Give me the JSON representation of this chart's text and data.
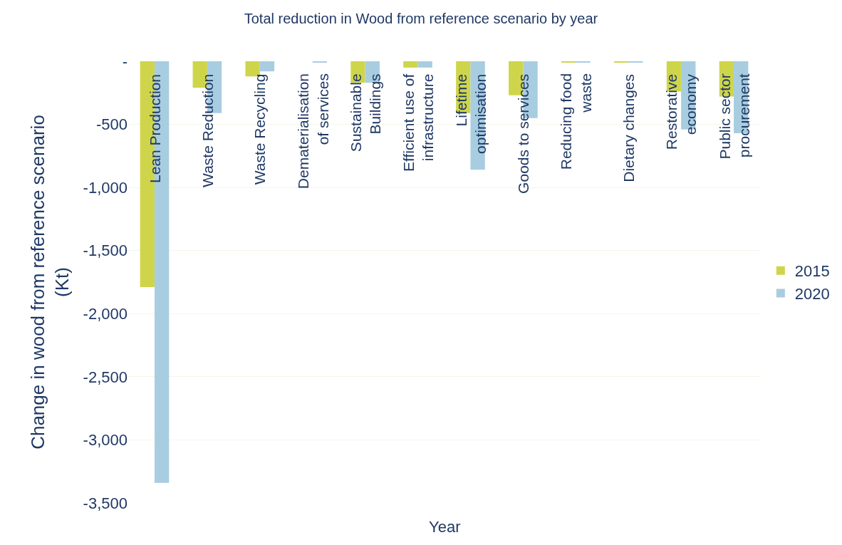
{
  "chart_data": {
    "type": "bar",
    "title": "Total reduction in Wood from reference scenario by year",
    "xlabel": "Year",
    "ylabel": "Change in wood from reference scenario\n(Kt)",
    "categories": [
      "Lean Production",
      "Waste Reduction",
      "Waste Recycling",
      "Dematerialisation\nof services",
      "Sustainable\nBuildings",
      "Efficient use of\ninfrastructure",
      "Lifetime\noptimisation",
      "Goods to services",
      "Reducing food\nwaste",
      "Dietary changes",
      "Restorative\neconomy",
      "Public sector\nprocurement"
    ],
    "series": [
      {
        "name": "2015",
        "color": "#cfd54a",
        "values": [
          -1790,
          -210,
          -120,
          0,
          -170,
          -50,
          -410,
          -270,
          -10,
          -10,
          -240,
          -280
        ]
      },
      {
        "name": "2020",
        "color": "#a8cde0",
        "values": [
          -3340,
          -410,
          -80,
          -10,
          -170,
          -50,
          -860,
          -450,
          -10,
          -10,
          -540,
          -570
        ]
      }
    ],
    "ylim": [
      -3500,
      0
    ],
    "yticks": [
      {
        "value": 0,
        "label": "-"
      },
      {
        "value": -500,
        "label": "-500"
      },
      {
        "value": -1000,
        "label": "-1,000"
      },
      {
        "value": -1500,
        "label": "-1,500"
      },
      {
        "value": -2000,
        "label": "-2,000"
      },
      {
        "value": -2500,
        "label": "-2,500"
      },
      {
        "value": -3000,
        "label": "-3,000"
      },
      {
        "value": -3500,
        "label": "-3,500"
      }
    ],
    "grid": "y",
    "legend": "right"
  }
}
